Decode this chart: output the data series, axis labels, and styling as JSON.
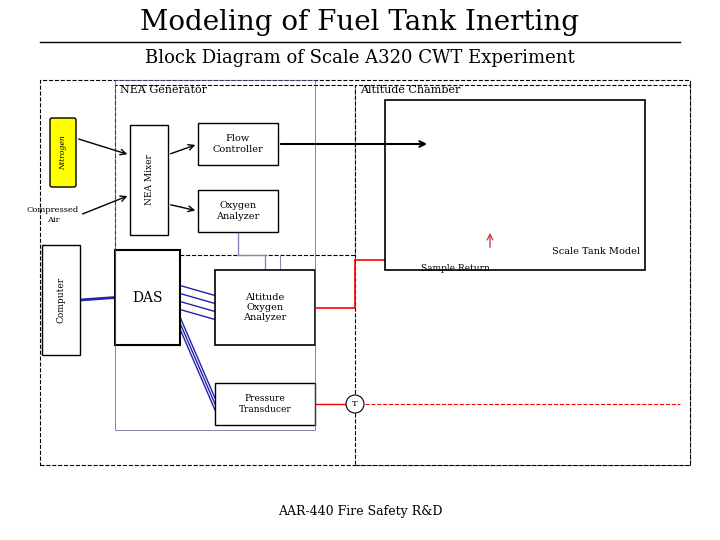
{
  "title": "Modeling of Fuel Tank Inerting",
  "subtitle": "Block Diagram of Scale A320 CWT Experiment",
  "footer": "AAR-440 Fire Safety R&D",
  "bg_color": "#ffffff",
  "title_fontsize": 20,
  "subtitle_fontsize": 13,
  "footer_fontsize": 9
}
